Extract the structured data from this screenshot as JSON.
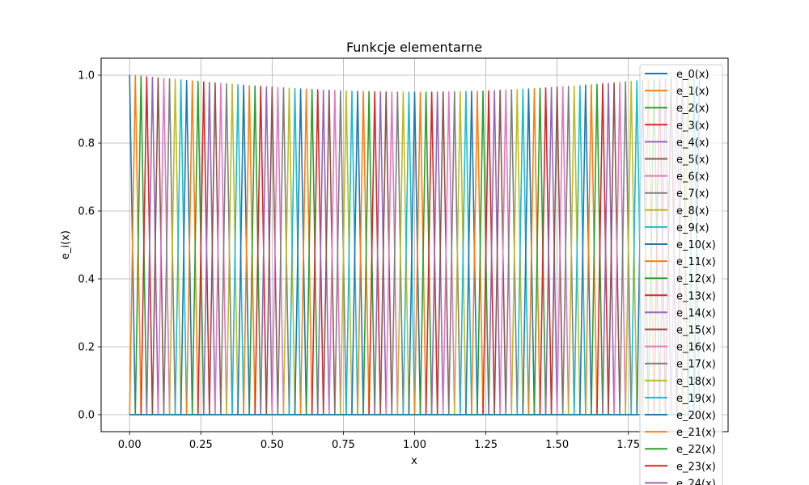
{
  "chart_data": {
    "type": "line",
    "title": "Funkcje elementarne",
    "xlabel": "x",
    "ylabel": "e_i(x)",
    "xlim": [
      -0.1,
      2.1
    ],
    "ylim": [
      -0.05,
      1.05
    ],
    "x_ticks": [
      "0.00",
      "0.25",
      "0.50",
      "0.75",
      "1.00",
      "1.25",
      "1.50",
      "1.75"
    ],
    "y_ticks": [
      "0.0",
      "0.2",
      "0.4",
      "0.6",
      "0.8",
      "1.0"
    ],
    "grid": true,
    "legend_position": "upper right",
    "x_domain": [
      0,
      2
    ],
    "num_functions": 101,
    "node_spacing": 0.02,
    "peak_profile": "peak height = 1 - 0.05*sin(pi*x_i/2), 1.0 at x=0 and x=2, about 0.95 at x=1",
    "legend_entries": [
      "e_0(x)",
      "e_1(x)",
      "e_2(x)",
      "e_3(x)",
      "e_4(x)",
      "e_5(x)",
      "e_6(x)",
      "e_7(x)",
      "e_8(x)",
      "e_9(x)",
      "e_10(x)",
      "e_11(x)",
      "e_12(x)",
      "e_13(x)",
      "e_14(x)",
      "e_15(x)",
      "e_16(x)",
      "e_17(x)",
      "e_18(x)",
      "e_19(x)",
      "e_20(x)",
      "e_21(x)",
      "e_22(x)",
      "e_23(x)",
      "e_24(x)"
    ],
    "colors": [
      "#1f77b4",
      "#ff7f0e",
      "#2ca02c",
      "#d62728",
      "#9467bd",
      "#8c564b",
      "#e377c2",
      "#7f7f7f",
      "#bcbd22",
      "#17becf"
    ]
  }
}
